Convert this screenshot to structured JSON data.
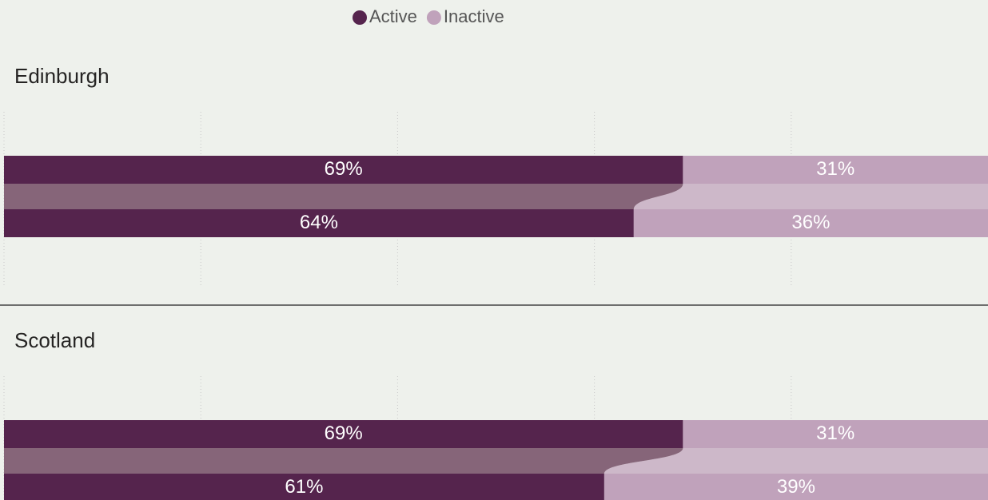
{
  "chart_data": {
    "type": "stacked_bar_ribbon",
    "orientation": "horizontal",
    "xlim": [
      0,
      100
    ],
    "xticks": [
      0,
      20,
      40,
      60,
      80
    ],
    "grid": true,
    "legend": "top",
    "series": [
      {
        "name": "Active",
        "color": "#55244d",
        "ribbon_color": "#866579"
      },
      {
        "name": "Inactive",
        "color": "#c0a2bb",
        "ribbon_color": "#cdb8c9"
      }
    ],
    "panels": [
      {
        "title": "Edinburgh",
        "series": [
          {
            "values": [
              69,
              64
            ],
            "value_labels": [
              "69%",
              "64%"
            ]
          },
          {
            "values": [
              31,
              36
            ],
            "value_labels": [
              "31%",
              "36%"
            ]
          }
        ]
      },
      {
        "title": "Scotland",
        "series": [
          {
            "values": [
              69,
              61
            ],
            "value_labels": [
              "69%",
              "61%"
            ]
          },
          {
            "values": [
              31,
              39
            ],
            "value_labels": [
              "31%",
              "39%"
            ]
          }
        ]
      }
    ]
  }
}
